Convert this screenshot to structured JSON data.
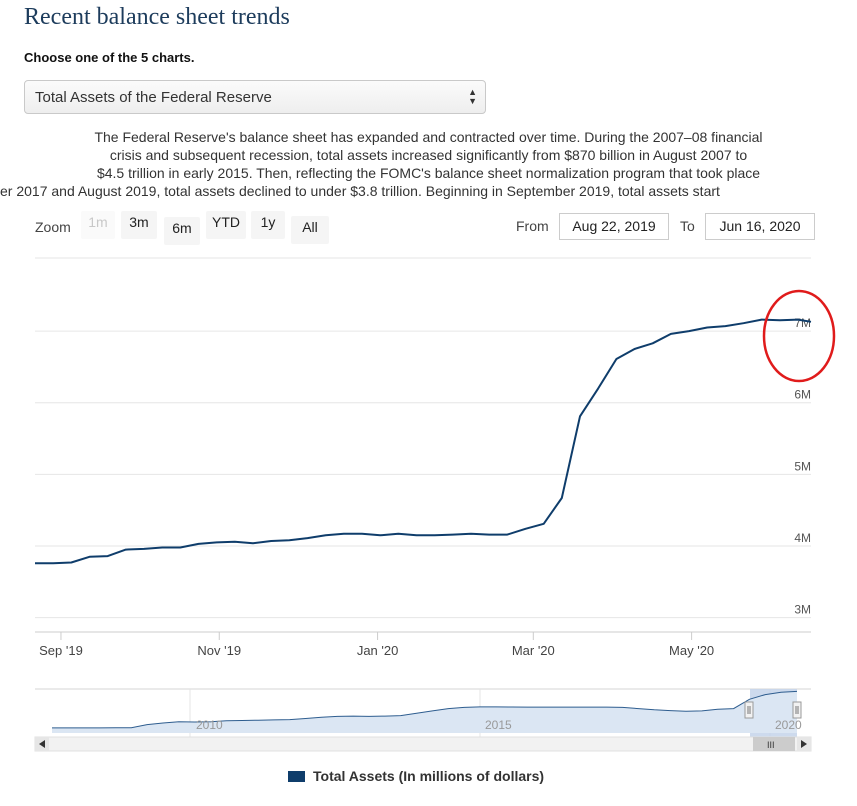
{
  "page": {
    "title": "Recent balance sheet trends",
    "subhead": "Choose one of the 5 charts.",
    "select_value": "Total Assets of the Federal Reserve",
    "description": [
      "The Federal Reserve's balance sheet has expanded and contracted over time. During the 2007–08 financial",
      "crisis and subsequent recession, total assets increased significantly from $870 billion in August 2007 to",
      "$4.5 trillion in early 2015. Then, reflecting the FOMC's balance sheet normalization program that took place",
      "er 2017 and August 2019, total assets declined to under $3.8 trillion. Beginning in September 2019, total assets start"
    ]
  },
  "controls": {
    "zoom_label": "Zoom",
    "zoom_buttons": [
      "1m",
      "3m",
      "6m",
      "YTD",
      "1y",
      "All"
    ],
    "from_label": "From",
    "from_value": "Aug 22, 2019",
    "to_label": "To",
    "to_value": "Jun 16, 2020"
  },
  "colors": {
    "series": "#0f3d6b",
    "highlight_circle": "#e01b1b",
    "navigator_mask": "#c4d3ea"
  },
  "chart_data": {
    "type": "line",
    "series": [
      {
        "name": "Total Assets (In millions of dollars)",
        "x": [
          "2019-08-22",
          "2019-08-29",
          "2019-09-05",
          "2019-09-12",
          "2019-09-19",
          "2019-09-26",
          "2019-10-03",
          "2019-10-10",
          "2019-10-17",
          "2019-10-24",
          "2019-10-31",
          "2019-11-07",
          "2019-11-14",
          "2019-11-21",
          "2019-11-28",
          "2019-12-05",
          "2019-12-12",
          "2019-12-19",
          "2019-12-26",
          "2020-01-02",
          "2020-01-09",
          "2020-01-16",
          "2020-01-23",
          "2020-01-30",
          "2020-02-06",
          "2020-02-13",
          "2020-02-20",
          "2020-02-27",
          "2020-03-05",
          "2020-03-12",
          "2020-03-19",
          "2020-03-26",
          "2020-04-02",
          "2020-04-09",
          "2020-04-16",
          "2020-04-23",
          "2020-04-30",
          "2020-05-07",
          "2020-05-14",
          "2020-05-21",
          "2020-05-28",
          "2020-06-04",
          "2020-06-11",
          "2020-06-16"
        ],
        "values": [
          3760000,
          3760000,
          3770000,
          3850000,
          3860000,
          3950000,
          3960000,
          3980000,
          3980000,
          4030000,
          4050000,
          4060000,
          4040000,
          4070000,
          4080000,
          4110000,
          4150000,
          4170000,
          4170000,
          4150000,
          4170000,
          4150000,
          4150000,
          4160000,
          4170000,
          4160000,
          4160000,
          4240000,
          4310000,
          4670000,
          5810000,
          6200000,
          6610000,
          6750000,
          6830000,
          6960000,
          7000000,
          7050000,
          7070000,
          7110000,
          7160000,
          7150000,
          7160000,
          7130000
        ]
      }
    ],
    "y_ticks": [
      "3M",
      "4M",
      "5M",
      "6M",
      "7M"
    ],
    "x_ticks": [
      "Sep '19",
      "Nov '19",
      "Jan '20",
      "Mar '20",
      "May '20"
    ],
    "ylim": [
      2800000,
      8020000
    ],
    "xlim": [
      "2019-08-22",
      "2020-06-16"
    ],
    "grid": true,
    "legend": "bottom-center",
    "navigator": {
      "labels": [
        "2010",
        "2015",
        "2020"
      ],
      "values": [
        0.87,
        0.87,
        0.88,
        0.88,
        0.9,
        0.92,
        1.45,
        1.72,
        1.95,
        1.9,
        1.92,
        2.1,
        2.15,
        2.2,
        2.25,
        2.3,
        2.5,
        2.7,
        2.85,
        2.9,
        2.85,
        2.9,
        3.0,
        3.4,
        3.8,
        4.2,
        4.4,
        4.5,
        4.5,
        4.48,
        4.45,
        4.45,
        4.45,
        4.45,
        4.45,
        4.45,
        4.4,
        4.2,
        4.0,
        3.85,
        3.76,
        3.8,
        4.1,
        4.2,
        5.8,
        6.6,
        7.0,
        7.16
      ]
    }
  }
}
